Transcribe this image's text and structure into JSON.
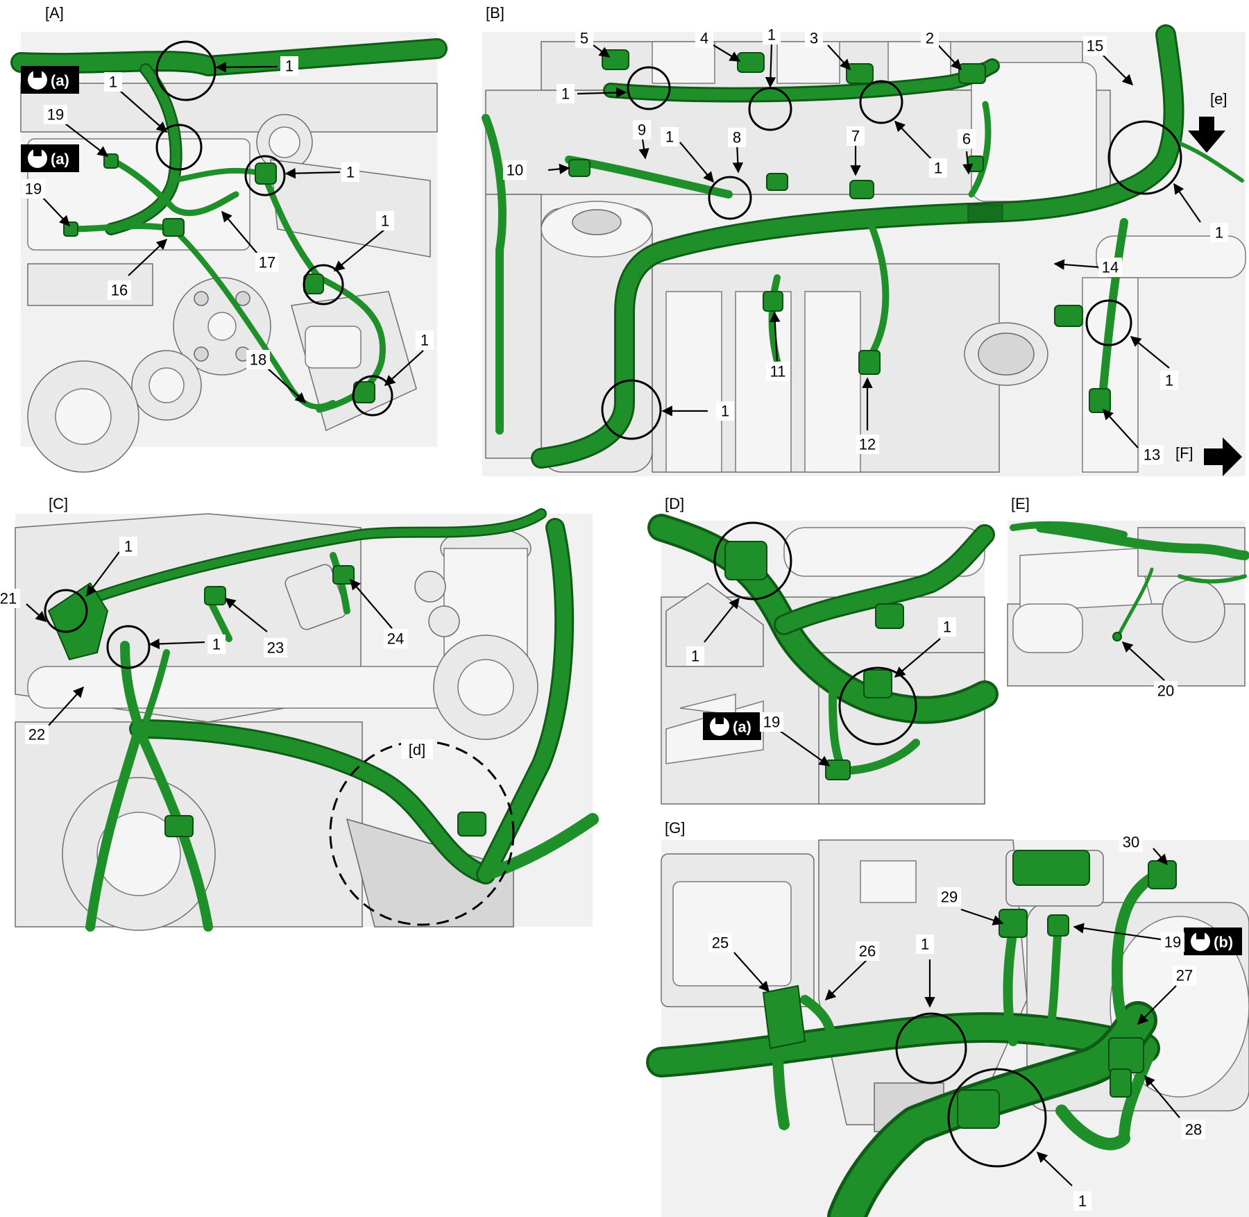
{
  "panels": {
    "A": "[A]",
    "B": "[B]",
    "C": "[C]",
    "D": "[D]",
    "E": "[E]",
    "G": "[G]"
  },
  "markers": {
    "e": "[e]",
    "F": "[F]",
    "d": "[d]"
  },
  "torque": {
    "a": "(a)",
    "b": "(b)"
  },
  "icons": {
    "torque_wrench": "wrench-icon",
    "direction": "arrow-icon"
  },
  "colors": {
    "harness": "#1f8f2a",
    "harness_dark": "#0f5c16",
    "engine": "#e9e9e9",
    "outline": "#000000"
  },
  "callouts": {
    "A": [
      "1",
      "1",
      "19",
      "1",
      "19",
      "16",
      "17",
      "1",
      "18",
      "1"
    ],
    "B": [
      "5",
      "4",
      "1",
      "3",
      "2",
      "15",
      "1",
      "9",
      "1",
      "8",
      "7",
      "6",
      "1",
      "10",
      "1",
      "14",
      "1",
      "11",
      "1",
      "12",
      "13"
    ],
    "C": [
      "1",
      "21",
      "1",
      "23",
      "24",
      "22"
    ],
    "D": [
      "1",
      "1",
      "19"
    ],
    "E": [
      "20"
    ],
    "G": [
      "30",
      "29",
      "19",
      "1",
      "25",
      "26",
      "27",
      "28",
      "1"
    ]
  }
}
